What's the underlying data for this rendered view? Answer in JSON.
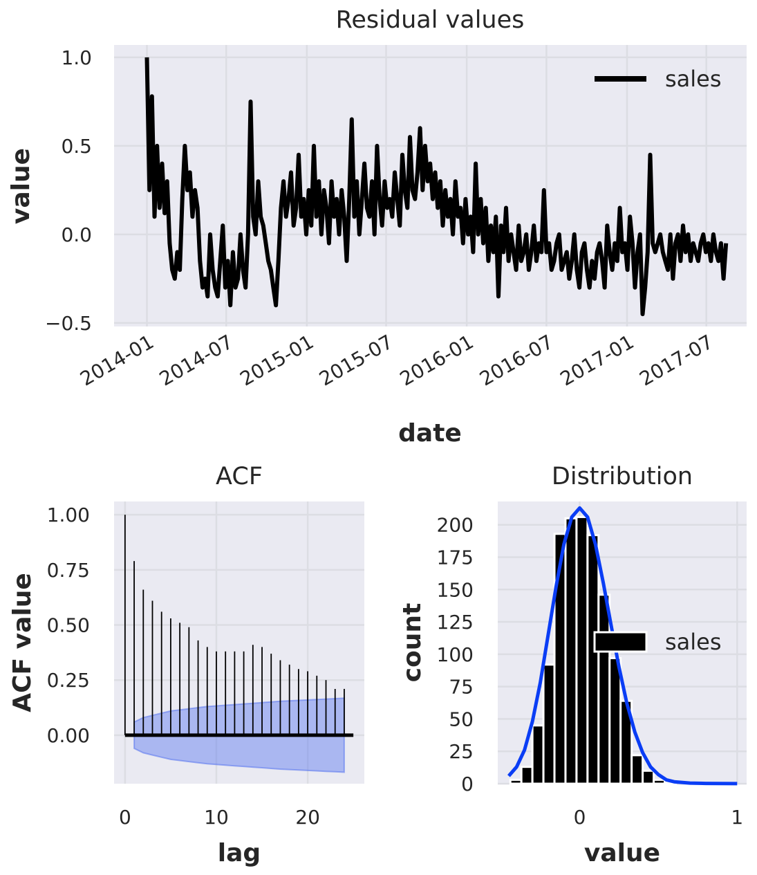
{
  "figure": {
    "background": "#ffffff",
    "panel_background": "#eaeaf2"
  },
  "chart_data": [
    {
      "type": "line",
      "title": "Residual values",
      "xlabel": "date",
      "ylabel": "value",
      "x_start": "2014-01-01",
      "x_end": "2017-08-15",
      "xlim": [
        "2013-10-18",
        "2017-10-01"
      ],
      "ylim": [
        -0.52,
        1.07
      ],
      "xtick_labels": [
        "2014-01",
        "2014-07",
        "2015-01",
        "2015-07",
        "2016-01",
        "2016-07",
        "2017-01",
        "2017-07"
      ],
      "xtick_values": [
        "2014-01-01",
        "2014-07-01",
        "2015-01-01",
        "2015-07-01",
        "2016-01-01",
        "2016-07-01",
        "2017-01-01",
        "2017-07-01"
      ],
      "yticks": [
        -0.5,
        0.0,
        0.5,
        1.0
      ],
      "ytick_labels": [
        "−0.5",
        "0.0",
        "0.5",
        "1.0"
      ],
      "series": [
        {
          "name": "sales",
          "color": "#000000",
          "values": [
            1.0,
            0.25,
            0.78,
            0.1,
            0.5,
            0.15,
            0.4,
            0.12,
            0.3,
            -0.05,
            -0.2,
            -0.25,
            -0.1,
            -0.2,
            0.2,
            0.5,
            0.25,
            0.35,
            0.1,
            0.25,
            0.15,
            -0.15,
            -0.3,
            -0.25,
            -0.35,
            0.0,
            -0.2,
            -0.3,
            -0.35,
            -0.15,
            0.05,
            -0.3,
            -0.15,
            -0.4,
            -0.1,
            -0.3,
            -0.25,
            0.0,
            -0.2,
            -0.3,
            0.0,
            0.75,
            0.1,
            0.0,
            0.3,
            0.1,
            0.05,
            -0.05,
            -0.15,
            -0.2,
            -0.3,
            -0.4,
            -0.15,
            0.15,
            0.3,
            0.1,
            0.2,
            0.35,
            0.05,
            0.15,
            0.45,
            0.1,
            0.2,
            0.0,
            0.25,
            0.05,
            0.5,
            0.1,
            0.3,
            0.0,
            0.25,
            0.15,
            -0.05,
            0.3,
            0.1,
            0.2,
            0.0,
            0.25,
            0.1,
            -0.15,
            0.2,
            0.65,
            0.1,
            0.3,
            0.0,
            0.2,
            0.4,
            0.15,
            0.1,
            0.3,
            0.0,
            0.5,
            0.2,
            0.05,
            0.3,
            0.15,
            0.2,
            0.1,
            0.35,
            0.2,
            0.05,
            0.45,
            0.25,
            0.15,
            0.55,
            0.25,
            0.2,
            0.35,
            0.6,
            0.25,
            0.5,
            0.3,
            0.4,
            0.2,
            0.35,
            0.15,
            0.3,
            0.05,
            0.25,
            0.1,
            0.2,
            0.0,
            0.3,
            0.1,
            0.15,
            -0.05,
            0.2,
            0.0,
            0.1,
            -0.1,
            0.4,
            0.0,
            0.2,
            -0.05,
            0.15,
            -0.15,
            0.05,
            -0.1,
            0.1,
            -0.35,
            0.05,
            -0.1,
            0.15,
            -0.15,
            0.0,
            -0.1,
            -0.2,
            0.05,
            -0.15,
            -0.1,
            0.0,
            -0.2,
            -0.1,
            0.05,
            -0.15,
            -0.05,
            -0.1,
            0.25,
            -0.1,
            -0.05,
            -0.2,
            -0.15,
            -0.05,
            0.0,
            -0.2,
            -0.15,
            -0.1,
            -0.25,
            -0.15,
            0.0,
            -0.2,
            -0.3,
            -0.1,
            -0.05,
            -0.2,
            -0.3,
            -0.15,
            -0.25,
            -0.1,
            -0.05,
            -0.15,
            -0.3,
            0.05,
            -0.1,
            -0.2,
            -0.05,
            -0.15,
            0.15,
            -0.1,
            -0.05,
            -0.2,
            0.1,
            -0.05,
            -0.3,
            -0.1,
            0.0,
            -0.45,
            -0.3,
            -0.1,
            0.45,
            -0.05,
            -0.1,
            -0.05,
            0.0,
            -0.1,
            -0.15,
            -0.2,
            0.0,
            -0.25,
            -0.05,
            0.0,
            -0.15,
            0.05,
            -0.1,
            0.0,
            -0.15,
            -0.05,
            -0.1,
            -0.15,
            -0.05,
            0.0,
            -0.1,
            -0.05,
            -0.15,
            0.0,
            -0.1,
            -0.15,
            -0.05,
            -0.25,
            -0.05
          ]
        }
      ],
      "legend": {
        "position": "top-right"
      },
      "grid": true
    },
    {
      "type": "stem",
      "title": "ACF",
      "xlabel": "lag",
      "ylabel": "ACF value",
      "xlim": [
        -1.2,
        26.2
      ],
      "ylim": [
        -0.22,
        1.06
      ],
      "xticks": [
        0,
        10,
        20
      ],
      "xtick_labels": [
        "0",
        "10",
        "20"
      ],
      "yticks": [
        0.0,
        0.25,
        0.5,
        0.75,
        1.0
      ],
      "ytick_labels": [
        "0.00",
        "0.25",
        "0.50",
        "0.75",
        "1.00"
      ],
      "lags": [
        0,
        1,
        2,
        3,
        4,
        5,
        6,
        7,
        8,
        9,
        10,
        11,
        12,
        13,
        14,
        15,
        16,
        17,
        18,
        19,
        20,
        21,
        22,
        23,
        24
      ],
      "values": [
        1.0,
        0.79,
        0.66,
        0.61,
        0.56,
        0.53,
        0.51,
        0.49,
        0.43,
        0.4,
        0.38,
        0.38,
        0.38,
        0.38,
        0.41,
        0.4,
        0.37,
        0.34,
        0.32,
        0.3,
        0.29,
        0.27,
        0.25,
        0.21,
        0.21
      ],
      "confidence_band": {
        "lags": [
          1,
          2,
          3,
          4,
          5,
          6,
          7,
          8,
          9,
          10,
          11,
          12,
          13,
          14,
          15,
          16,
          17,
          18,
          19,
          20,
          21,
          22,
          23,
          24
        ],
        "upper": [
          0.06,
          0.08,
          0.09,
          0.1,
          0.11,
          0.115,
          0.12,
          0.125,
          0.13,
          0.133,
          0.136,
          0.139,
          0.142,
          0.145,
          0.148,
          0.151,
          0.154,
          0.156,
          0.158,
          0.16,
          0.162,
          0.164,
          0.166,
          0.168
        ],
        "lower": [
          -0.06,
          -0.08,
          -0.09,
          -0.1,
          -0.11,
          -0.115,
          -0.12,
          -0.125,
          -0.13,
          -0.133,
          -0.136,
          -0.139,
          -0.142,
          -0.145,
          -0.148,
          -0.151,
          -0.154,
          -0.156,
          -0.158,
          -0.16,
          -0.162,
          -0.164,
          -0.166,
          -0.168
        ],
        "color": "#4c6cf0"
      },
      "grid": true
    },
    {
      "type": "histogram",
      "title": "Distribution",
      "xlabel": "value",
      "ylabel": "count",
      "xlim": [
        -0.52,
        1.06
      ],
      "ylim": [
        0,
        218
      ],
      "xticks": [
        0,
        1
      ],
      "xtick_labels": [
        "0",
        "1"
      ],
      "yticks": [
        0,
        25,
        50,
        75,
        100,
        125,
        150,
        175,
        200
      ],
      "ytick_labels": [
        "0",
        "25",
        "50",
        "75",
        "100",
        "125",
        "150",
        "175",
        "200"
      ],
      "bin_edges": [
        -0.44,
        -0.37,
        -0.3,
        -0.23,
        -0.16,
        -0.09,
        -0.02,
        0.05,
        0.12,
        0.19,
        0.26,
        0.33,
        0.4,
        0.47,
        0.54,
        0.61
      ],
      "counts": [
        3,
        13,
        45,
        92,
        193,
        205,
        206,
        192,
        146,
        97,
        64,
        22,
        10,
        3,
        1
      ],
      "series": [
        {
          "name": "sales",
          "color": "#000000"
        }
      ],
      "kde": {
        "color": "#0a3df5",
        "x": [
          -0.45,
          -0.4,
          -0.35,
          -0.3,
          -0.25,
          -0.2,
          -0.15,
          -0.1,
          -0.05,
          0.0,
          0.05,
          0.1,
          0.15,
          0.2,
          0.25,
          0.3,
          0.35,
          0.4,
          0.45,
          0.5,
          0.55,
          0.6,
          0.7,
          0.8,
          0.9,
          1.0
        ],
        "y": [
          6,
          13,
          26,
          48,
          78,
          115,
          152,
          185,
          206,
          213,
          206,
          185,
          155,
          122,
          90,
          62,
          40,
          24,
          13,
          7,
          3,
          1.5,
          0.5,
          0.2,
          0.1,
          0.05
        ]
      },
      "legend": {
        "position": "center-right"
      },
      "grid": true
    }
  ]
}
